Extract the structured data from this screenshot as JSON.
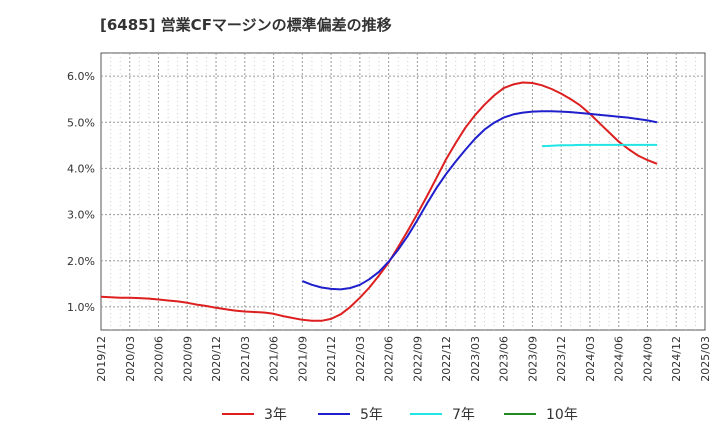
{
  "chart_data": {
    "type": "line",
    "title": "[6485]  営業CFマージンの標準偏差の推移",
    "xlabel": "",
    "ylabel": "",
    "ylim": [
      0.5,
      6.5
    ],
    "y_ticks": [
      "1.0%",
      "2.0%",
      "3.0%",
      "4.0%",
      "5.0%",
      "6.0%"
    ],
    "y_tick_values": [
      1.0,
      2.0,
      3.0,
      4.0,
      5.0,
      6.0
    ],
    "x_ticks": [
      "2019/12",
      "2020/03",
      "2020/06",
      "2020/09",
      "2020/12",
      "2021/03",
      "2021/06",
      "2021/09",
      "2021/12",
      "2022/03",
      "2022/06",
      "2022/09",
      "2022/12",
      "2023/03",
      "2023/06",
      "2023/09",
      "2023/12",
      "2024/03",
      "2024/06",
      "2024/09",
      "2024/12",
      "2025/03"
    ],
    "grid": true,
    "legend_position": "bottom",
    "series": [
      {
        "name": "3年",
        "color": "#dd1f1f",
        "points": [
          [
            "2019/12",
            1.22
          ],
          [
            "2020/01",
            1.21
          ],
          [
            "2020/02",
            1.2
          ],
          [
            "2020/03",
            1.2
          ],
          [
            "2020/04",
            1.19
          ],
          [
            "2020/05",
            1.18
          ],
          [
            "2020/06",
            1.16
          ],
          [
            "2020/07",
            1.14
          ],
          [
            "2020/08",
            1.12
          ],
          [
            "2020/09",
            1.09
          ],
          [
            "2020/10",
            1.05
          ],
          [
            "2020/11",
            1.02
          ],
          [
            "2020/12",
            0.98
          ],
          [
            "2021/01",
            0.95
          ],
          [
            "2021/02",
            0.92
          ],
          [
            "2021/03",
            0.9
          ],
          [
            "2021/04",
            0.89
          ],
          [
            "2021/05",
            0.88
          ],
          [
            "2021/06",
            0.85
          ],
          [
            "2021/07",
            0.8
          ],
          [
            "2021/08",
            0.76
          ],
          [
            "2021/09",
            0.72
          ],
          [
            "2021/10",
            0.7
          ],
          [
            "2021/11",
            0.7
          ],
          [
            "2021/12",
            0.74
          ],
          [
            "2022/01",
            0.84
          ],
          [
            "2022/02",
            1.0
          ],
          [
            "2022/03",
            1.2
          ],
          [
            "2022/04",
            1.42
          ],
          [
            "2022/05",
            1.68
          ],
          [
            "2022/06",
            1.96
          ],
          [
            "2022/07",
            2.3
          ],
          [
            "2022/08",
            2.65
          ],
          [
            "2022/09",
            3.02
          ],
          [
            "2022/10",
            3.4
          ],
          [
            "2022/11",
            3.8
          ],
          [
            "2022/12",
            4.2
          ],
          [
            "2023/01",
            4.55
          ],
          [
            "2023/02",
            4.88
          ],
          [
            "2023/03",
            5.15
          ],
          [
            "2023/04",
            5.38
          ],
          [
            "2023/05",
            5.58
          ],
          [
            "2023/06",
            5.74
          ],
          [
            "2023/07",
            5.82
          ],
          [
            "2023/08",
            5.86
          ],
          [
            "2023/09",
            5.85
          ],
          [
            "2023/10",
            5.8
          ],
          [
            "2023/11",
            5.72
          ],
          [
            "2023/12",
            5.62
          ],
          [
            "2024/01",
            5.5
          ],
          [
            "2024/02",
            5.36
          ],
          [
            "2024/03",
            5.18
          ],
          [
            "2024/04",
            4.98
          ],
          [
            "2024/05",
            4.78
          ],
          [
            "2024/06",
            4.58
          ],
          [
            "2024/07",
            4.42
          ],
          [
            "2024/08",
            4.28
          ],
          [
            "2024/09",
            4.18
          ],
          [
            "2024/10",
            4.1
          ]
        ]
      },
      {
        "name": "5年",
        "color": "#1f1fcc",
        "points": [
          [
            "2021/09",
            1.56
          ],
          [
            "2021/10",
            1.48
          ],
          [
            "2021/11",
            1.42
          ],
          [
            "2021/12",
            1.39
          ],
          [
            "2022/01",
            1.38
          ],
          [
            "2022/02",
            1.41
          ],
          [
            "2022/03",
            1.48
          ],
          [
            "2022/04",
            1.6
          ],
          [
            "2022/05",
            1.76
          ],
          [
            "2022/06",
            1.98
          ],
          [
            "2022/07",
            2.24
          ],
          [
            "2022/08",
            2.54
          ],
          [
            "2022/09",
            2.88
          ],
          [
            "2022/10",
            3.24
          ],
          [
            "2022/11",
            3.58
          ],
          [
            "2022/12",
            3.88
          ],
          [
            "2023/01",
            4.15
          ],
          [
            "2023/02",
            4.4
          ],
          [
            "2023/03",
            4.64
          ],
          [
            "2023/04",
            4.84
          ],
          [
            "2023/05",
            4.99
          ],
          [
            "2023/06",
            5.1
          ],
          [
            "2023/07",
            5.17
          ],
          [
            "2023/08",
            5.21
          ],
          [
            "2023/09",
            5.23
          ],
          [
            "2023/10",
            5.24
          ],
          [
            "2023/11",
            5.24
          ],
          [
            "2023/12",
            5.23
          ],
          [
            "2024/01",
            5.22
          ],
          [
            "2024/02",
            5.2
          ],
          [
            "2024/03",
            5.18
          ],
          [
            "2024/04",
            5.16
          ],
          [
            "2024/05",
            5.14
          ],
          [
            "2024/06",
            5.12
          ],
          [
            "2024/07",
            5.1
          ],
          [
            "2024/08",
            5.07
          ],
          [
            "2024/09",
            5.04
          ],
          [
            "2024/10",
            5.0
          ]
        ]
      },
      {
        "name": "7年",
        "color": "#22e5e5",
        "points": [
          [
            "2023/10",
            4.48
          ],
          [
            "2023/11",
            4.49
          ],
          [
            "2023/12",
            4.5
          ],
          [
            "2024/01",
            4.5
          ],
          [
            "2024/02",
            4.51
          ],
          [
            "2024/03",
            4.51
          ],
          [
            "2024/04",
            4.51
          ],
          [
            "2024/05",
            4.51
          ],
          [
            "2024/06",
            4.51
          ],
          [
            "2024/07",
            4.51
          ],
          [
            "2024/08",
            4.51
          ],
          [
            "2024/09",
            4.51
          ],
          [
            "2024/10",
            4.51
          ]
        ]
      },
      {
        "name": "10年",
        "color": "#1f8c1f",
        "points": []
      }
    ]
  }
}
